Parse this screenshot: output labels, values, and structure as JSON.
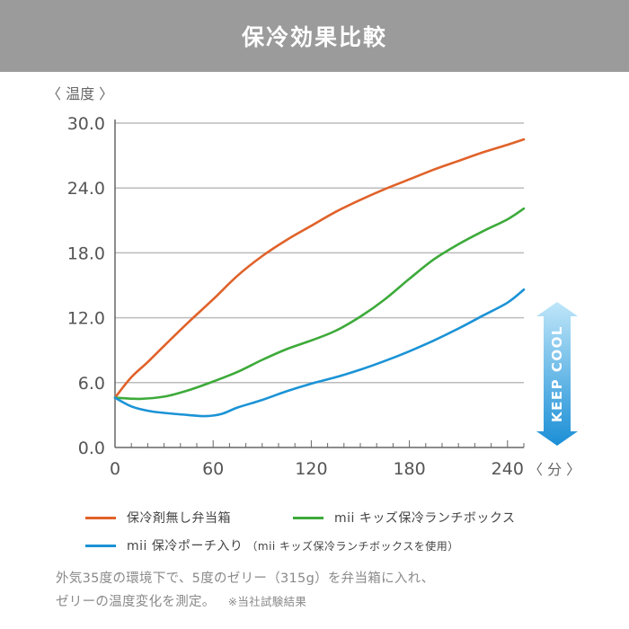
{
  "header": {
    "title": "保冷効果比較"
  },
  "chart_data": {
    "type": "line",
    "title": "保冷効果比較",
    "ylabel": "〈 温度 〉",
    "xlabel": "〈 分 〉",
    "xlim": [
      0,
      250
    ],
    "ylim": [
      0,
      30
    ],
    "x_ticks": [
      0,
      60,
      120,
      180,
      240
    ],
    "x_tick_labels": [
      "0",
      "60",
      "120",
      "180",
      "240"
    ],
    "y_ticks": [
      0,
      6,
      12,
      18,
      24,
      30
    ],
    "y_tick_labels": [
      "0.0",
      "6.0",
      "12.0",
      "18.0",
      "24.0",
      "30.0"
    ],
    "grid": "horizontal",
    "legend_position": "bottom",
    "series": [
      {
        "name": "保冷剤無し弁当箱",
        "color": "#e0622a",
        "x": [
          0,
          10,
          20,
          30,
          45,
          60,
          75,
          90,
          105,
          120,
          135,
          150,
          165,
          180,
          195,
          210,
          225,
          240,
          250
        ],
        "y": [
          4.6,
          6.5,
          7.9,
          9.4,
          11.6,
          13.7,
          15.9,
          17.7,
          19.2,
          20.5,
          21.8,
          22.9,
          23.9,
          24.8,
          25.7,
          26.5,
          27.3,
          28.0,
          28.5
        ]
      },
      {
        "name": "mii キッズ保冷ランチボックス",
        "color": "#3daa3a",
        "x": [
          0,
          15,
          30,
          45,
          60,
          75,
          90,
          105,
          120,
          135,
          150,
          165,
          180,
          195,
          210,
          225,
          240,
          250
        ],
        "y": [
          4.6,
          4.5,
          4.7,
          5.3,
          6.1,
          7.0,
          8.1,
          9.1,
          9.9,
          10.8,
          12.1,
          13.7,
          15.6,
          17.4,
          18.8,
          20.0,
          21.1,
          22.1
        ]
      },
      {
        "name": "mii 保冷ポーチ入り",
        "color": "#1b93d6",
        "x": [
          0,
          10,
          20,
          30,
          45,
          55,
          65,
          75,
          90,
          105,
          120,
          135,
          150,
          165,
          180,
          195,
          210,
          225,
          240,
          250
        ],
        "y": [
          4.6,
          3.8,
          3.4,
          3.2,
          3.0,
          2.9,
          3.1,
          3.7,
          4.4,
          5.2,
          5.9,
          6.5,
          7.2,
          8.0,
          8.9,
          9.9,
          11.0,
          12.2,
          13.4,
          14.6
        ]
      }
    ],
    "series_notes": {
      "mii 保冷ポーチ入り": "（mii キッズ保冷ランチボックスを使用）"
    },
    "side_label": "KEEP COOL"
  },
  "footnote": {
    "line1": "外気35度の環境下で、5度のゼリー（315g）を弁当箱に入れ、",
    "line2": "ゼリーの温度変化を測定。",
    "note": "※当社試験結果"
  },
  "colors": {
    "header_bg": "#9b9b9b",
    "axis": "#666666",
    "grid": "#bbbbbb",
    "arrow_top": "#bfe6f9",
    "arrow_bottom": "#1b8fd6"
  }
}
